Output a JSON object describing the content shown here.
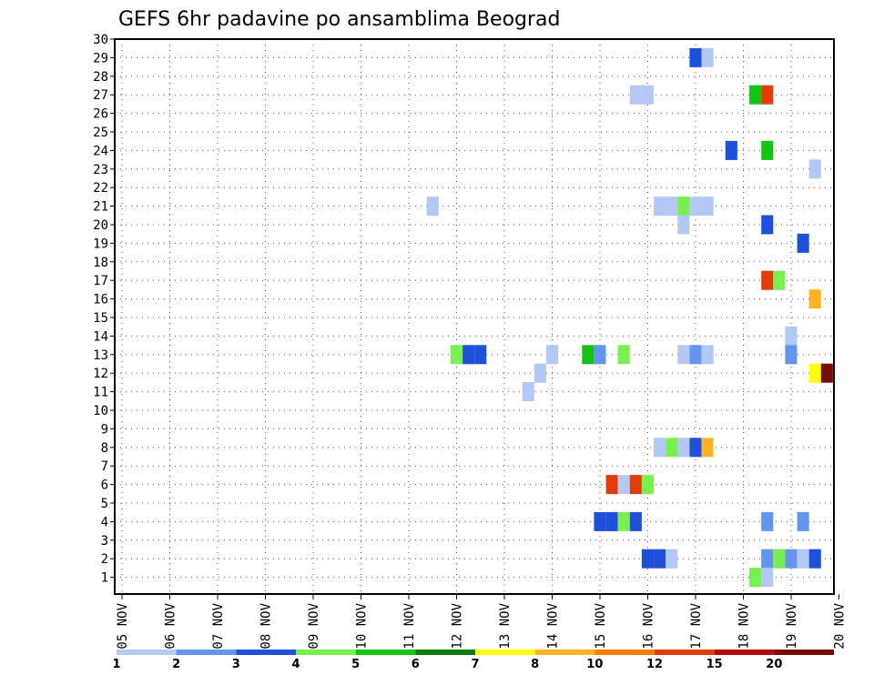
{
  "chart_data": {
    "type": "heatmap",
    "title": "GEFS 6hr padavine po ansamblima Beograd",
    "x_tick_labels": [
      "05 NOV",
      "06 NOV",
      "07 NOV",
      "08 NOV",
      "09 NOV",
      "10 NOV",
      "11 NOV",
      "12 NOV",
      "13 NOV",
      "14 NOV",
      "15 NOV",
      "16 NOV",
      "17 NOV",
      "18 NOV",
      "19 NOV",
      "20 NOV"
    ],
    "y_tick_labels": [
      "1",
      "2",
      "3",
      "4",
      "5",
      "6",
      "7",
      "8",
      "9",
      "10",
      "11",
      "12",
      "13",
      "14",
      "15",
      "16",
      "17",
      "18",
      "19",
      "20",
      "21",
      "22",
      "23",
      "24",
      "25",
      "26",
      "27",
      "28",
      "29",
      "30"
    ],
    "xlim_days": [
      0,
      15
    ],
    "ylim": [
      0,
      30
    ],
    "grid": true,
    "legend": {
      "placement": "bottom",
      "labels": [
        "1",
        "2",
        "3",
        "4",
        "5",
        "6",
        "7",
        "8",
        "10",
        "12",
        "15",
        "20"
      ],
      "colors": [
        "#b4c8f5",
        "#6496f0",
        "#1e50dc",
        "#78f050",
        "#14c314",
        "#0a7d0a",
        "#ffff00",
        "#ffb428",
        "#ff7d00",
        "#e13c0a",
        "#b40a0a",
        "#780a0a"
      ]
    },
    "cells": [
      {
        "member": 29,
        "day": 12.0,
        "cls": 2
      },
      {
        "member": 29,
        "day": 12.25,
        "cls": 0
      },
      {
        "member": 27,
        "day": 10.75,
        "cls": 0
      },
      {
        "member": 27,
        "day": 11.0,
        "cls": 0
      },
      {
        "member": 27,
        "day": 13.25,
        "cls": 4
      },
      {
        "member": 27,
        "day": 13.5,
        "cls": 9
      },
      {
        "member": 24,
        "day": 12.75,
        "cls": 2
      },
      {
        "member": 24,
        "day": 13.5,
        "cls": 4
      },
      {
        "member": 23,
        "day": 14.5,
        "cls": 0
      },
      {
        "member": 21,
        "day": 6.5,
        "cls": 0
      },
      {
        "member": 21,
        "day": 11.25,
        "cls": 0
      },
      {
        "member": 21,
        "day": 11.5,
        "cls": 0
      },
      {
        "member": 21,
        "day": 11.75,
        "cls": 3
      },
      {
        "member": 21,
        "day": 12.0,
        "cls": 0
      },
      {
        "member": 21,
        "day": 12.25,
        "cls": 0
      },
      {
        "member": 20,
        "day": 11.75,
        "cls": 0
      },
      {
        "member": 20,
        "day": 13.5,
        "cls": 2
      },
      {
        "member": 19,
        "day": 14.25,
        "cls": 2
      },
      {
        "member": 17,
        "day": 13.5,
        "cls": 9
      },
      {
        "member": 17,
        "day": 13.75,
        "cls": 3
      },
      {
        "member": 16,
        "day": 14.5,
        "cls": 7
      },
      {
        "member": 14,
        "day": 14.0,
        "cls": 0
      },
      {
        "member": 13,
        "day": 7.0,
        "cls": 3
      },
      {
        "member": 13,
        "day": 7.25,
        "cls": 2
      },
      {
        "member": 13,
        "day": 7.5,
        "cls": 2
      },
      {
        "member": 13,
        "day": 9.0,
        "cls": 0
      },
      {
        "member": 13,
        "day": 9.75,
        "cls": 4
      },
      {
        "member": 13,
        "day": 10.0,
        "cls": 1
      },
      {
        "member": 13,
        "day": 10.5,
        "cls": 3
      },
      {
        "member": 13,
        "day": 11.75,
        "cls": 0
      },
      {
        "member": 13,
        "day": 12.0,
        "cls": 1
      },
      {
        "member": 13,
        "day": 12.25,
        "cls": 0
      },
      {
        "member": 13,
        "day": 14.0,
        "cls": 1
      },
      {
        "member": 12,
        "day": 8.75,
        "cls": 0
      },
      {
        "member": 12,
        "day": 14.5,
        "cls": 6
      },
      {
        "member": 12,
        "day": 14.75,
        "cls": 11
      },
      {
        "member": 11,
        "day": 8.5,
        "cls": 0
      },
      {
        "member": 8,
        "day": 11.25,
        "cls": 0
      },
      {
        "member": 8,
        "day": 11.5,
        "cls": 3
      },
      {
        "member": 8,
        "day": 11.75,
        "cls": 0
      },
      {
        "member": 8,
        "day": 12.0,
        "cls": 2
      },
      {
        "member": 8,
        "day": 12.25,
        "cls": 7
      },
      {
        "member": 6,
        "day": 10.25,
        "cls": 9
      },
      {
        "member": 6,
        "day": 10.5,
        "cls": 0
      },
      {
        "member": 6,
        "day": 10.75,
        "cls": 9
      },
      {
        "member": 6,
        "day": 11.0,
        "cls": 3
      },
      {
        "member": 4,
        "day": 10.0,
        "cls": 2
      },
      {
        "member": 4,
        "day": 10.25,
        "cls": 2
      },
      {
        "member": 4,
        "day": 10.5,
        "cls": 3
      },
      {
        "member": 4,
        "day": 10.75,
        "cls": 2
      },
      {
        "member": 4,
        "day": 13.5,
        "cls": 1
      },
      {
        "member": 4,
        "day": 14.25,
        "cls": 1
      },
      {
        "member": 2,
        "day": 11.0,
        "cls": 2
      },
      {
        "member": 2,
        "day": 11.25,
        "cls": 2
      },
      {
        "member": 2,
        "day": 11.5,
        "cls": 0
      },
      {
        "member": 2,
        "day": 13.5,
        "cls": 1
      },
      {
        "member": 2,
        "day": 13.75,
        "cls": 3
      },
      {
        "member": 2,
        "day": 14.0,
        "cls": 1
      },
      {
        "member": 2,
        "day": 14.25,
        "cls": 0
      },
      {
        "member": 2,
        "day": 14.5,
        "cls": 2
      },
      {
        "member": 1,
        "day": 13.25,
        "cls": 3
      },
      {
        "member": 1,
        "day": 13.5,
        "cls": 0
      }
    ]
  }
}
